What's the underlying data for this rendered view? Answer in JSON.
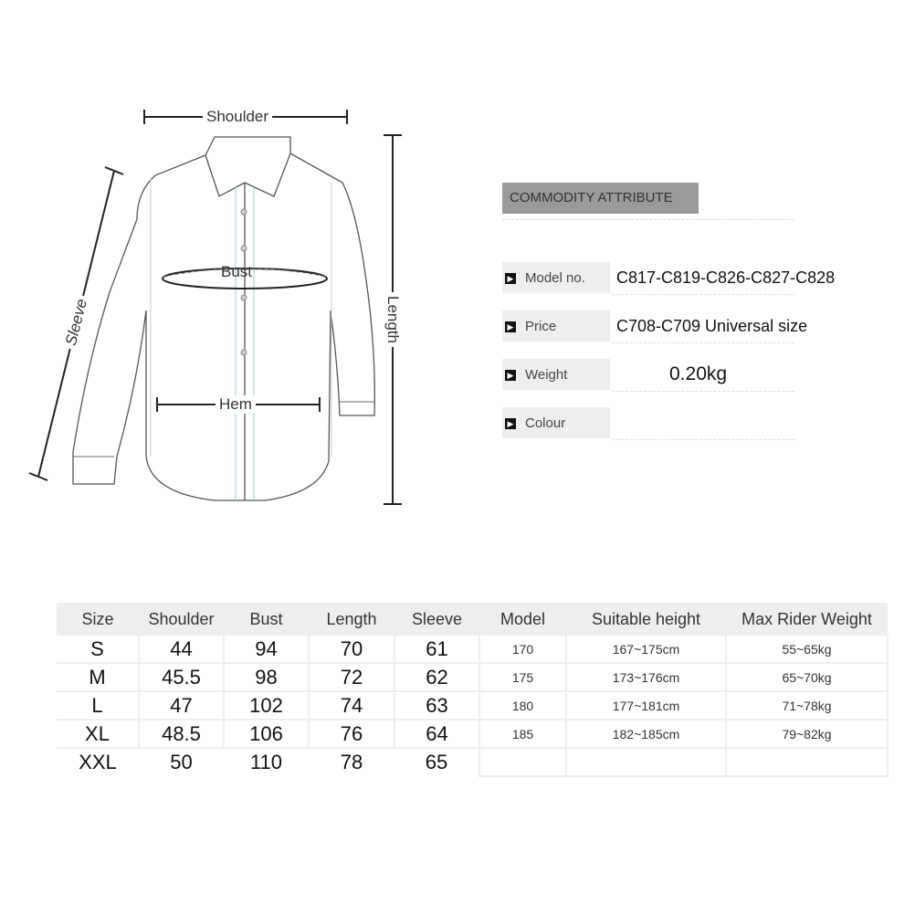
{
  "diagram": {
    "shoulder_label": "Shoulder",
    "bust_label": "Bust",
    "hem_label": "Hem",
    "sleeve_label": "Sleeve",
    "length_label": "Length"
  },
  "attributes": {
    "title": "COMMODITY ATTRIBUTE",
    "rows": [
      {
        "key": "Model no.",
        "value": "C817-C819-C826-C827-C828"
      },
      {
        "key": "Price",
        "value": "C708-C709 Universal size"
      },
      {
        "key": "Weight",
        "value": "0.20kg"
      },
      {
        "key": "Colour",
        "value": ""
      }
    ]
  },
  "size_table": {
    "headers": [
      "Size",
      "Shoulder",
      "Bust",
      "Length",
      "Sleeve",
      "Model",
      "Suitable height",
      "Max Rider Weight"
    ],
    "rows": [
      [
        "S",
        "44",
        "94",
        "70",
        "61",
        "170",
        "167~175cm",
        "55~65kg"
      ],
      [
        "M",
        "45.5",
        "98",
        "72",
        "62",
        "175",
        "173~176cm",
        "65~70kg"
      ],
      [
        "L",
        "47",
        "102",
        "74",
        "63",
        "180",
        "177~181cm",
        "71~78kg"
      ],
      [
        "XL",
        "48.5",
        "106",
        "76",
        "64",
        "185",
        "182~185cm",
        "79~82kg"
      ],
      [
        "XXL",
        "50",
        "110",
        "78",
        "65",
        "",
        "",
        ""
      ]
    ]
  }
}
